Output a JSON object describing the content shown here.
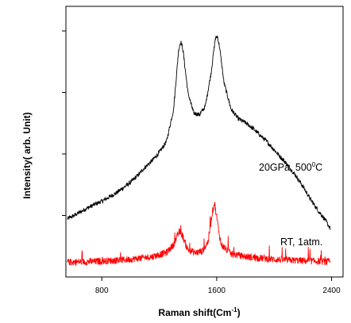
{
  "chart_data": {
    "type": "line",
    "xlabel": "Raman shift(Cm",
    "xlabel_superscript": "-1",
    "xlabel_suffix": ")",
    "ylabel": "Intensity( arb. Unit)",
    "xlim": [
      550,
      2480
    ],
    "x_ticks": [
      800,
      1600,
      2400
    ],
    "x_tick_labels": [
      "800",
      "1600",
      "2400"
    ],
    "y_tick_count": 4,
    "y_ticks_labeled": false,
    "grid": false,
    "legend": "none",
    "series": [
      {
        "color": "#000000",
        "annotation": {
          "text": "20GPa, 500",
          "superscript": "0",
          "suffix": "C"
        },
        "points": [
          [
            560,
            0.215
          ],
          [
            600,
            0.225
          ],
          [
            650,
            0.24
          ],
          [
            700,
            0.255
          ],
          [
            750,
            0.268
          ],
          [
            800,
            0.28
          ],
          [
            850,
            0.295
          ],
          [
            900,
            0.31
          ],
          [
            950,
            0.33
          ],
          [
            1000,
            0.35
          ],
          [
            1050,
            0.375
          ],
          [
            1100,
            0.405
          ],
          [
            1150,
            0.43
          ],
          [
            1200,
            0.46
          ],
          [
            1250,
            0.5
          ],
          [
            1300,
            0.62
          ],
          [
            1335,
            0.84
          ],
          [
            1350,
            0.87
          ],
          [
            1365,
            0.84
          ],
          [
            1400,
            0.68
          ],
          [
            1440,
            0.605
          ],
          [
            1480,
            0.6
          ],
          [
            1520,
            0.63
          ],
          [
            1560,
            0.75
          ],
          [
            1590,
            0.88
          ],
          [
            1605,
            0.89
          ],
          [
            1620,
            0.85
          ],
          [
            1650,
            0.72
          ],
          [
            1700,
            0.62
          ],
          [
            1750,
            0.585
          ],
          [
            1800,
            0.57
          ],
          [
            1850,
            0.55
          ],
          [
            1900,
            0.525
          ],
          [
            1950,
            0.5
          ],
          [
            2000,
            0.47
          ],
          [
            2050,
            0.44
          ],
          [
            2100,
            0.41
          ],
          [
            2150,
            0.375
          ],
          [
            2200,
            0.335
          ],
          [
            2250,
            0.29
          ],
          [
            2300,
            0.25
          ],
          [
            2350,
            0.215
          ],
          [
            2390,
            0.18
          ]
        ]
      },
      {
        "color": "#ff0000",
        "annotation": {
          "text": "RT, 1atm.",
          "superscript": "",
          "suffix": ""
        },
        "points": [
          [
            560,
            0.055
          ],
          [
            650,
            0.056
          ],
          [
            750,
            0.057
          ],
          [
            850,
            0.06
          ],
          [
            950,
            0.063
          ],
          [
            1050,
            0.068
          ],
          [
            1150,
            0.075
          ],
          [
            1250,
            0.09
          ],
          [
            1300,
            0.12
          ],
          [
            1340,
            0.168
          ],
          [
            1360,
            0.155
          ],
          [
            1400,
            0.1
          ],
          [
            1450,
            0.09
          ],
          [
            1500,
            0.095
          ],
          [
            1540,
            0.13
          ],
          [
            1570,
            0.24
          ],
          [
            1585,
            0.275
          ],
          [
            1600,
            0.22
          ],
          [
            1630,
            0.12
          ],
          [
            1700,
            0.085
          ],
          [
            1800,
            0.075
          ],
          [
            1900,
            0.07
          ],
          [
            2000,
            0.065
          ],
          [
            2100,
            0.062
          ],
          [
            2200,
            0.06
          ],
          [
            2300,
            0.058
          ],
          [
            2390,
            0.056
          ]
        ]
      }
    ]
  }
}
